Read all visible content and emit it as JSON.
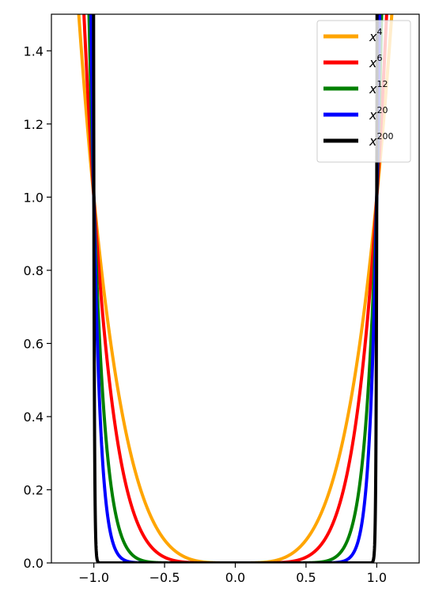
{
  "chart_data": {
    "type": "line",
    "title": "",
    "xlabel": "",
    "ylabel": "",
    "xlim": [
      -1.3,
      1.3
    ],
    "ylim": [
      0,
      1.5
    ],
    "x_ticks": [
      -1.0,
      -0.5,
      0.0,
      0.5,
      1.0
    ],
    "x_tick_labels": [
      "−1.0",
      "−0.5",
      "0.0",
      "0.5",
      "1.0"
    ],
    "y_ticks": [
      0.0,
      0.2,
      0.4,
      0.6,
      0.8,
      1.0,
      1.2,
      1.4
    ],
    "y_tick_labels": [
      "0.0",
      "0.2",
      "0.4",
      "0.6",
      "0.8",
      "1.0",
      "1.2",
      "1.4"
    ],
    "grid": false,
    "legend_position": "top-right",
    "series": [
      {
        "name": "x4",
        "label_base": "x",
        "label_exp": "4",
        "exponent": 4,
        "color": "#FFA500"
      },
      {
        "name": "x6",
        "label_base": "x",
        "label_exp": "6",
        "exponent": 6,
        "color": "#FF0000"
      },
      {
        "name": "x12",
        "label_base": "x",
        "label_exp": "12",
        "exponent": 12,
        "color": "#008000"
      },
      {
        "name": "x20",
        "label_base": "x",
        "label_exp": "20",
        "exponent": 20,
        "color": "#0000FF"
      },
      {
        "name": "x200",
        "label_base": "x",
        "label_exp": "200",
        "exponent": 200,
        "color": "#000000"
      }
    ]
  }
}
